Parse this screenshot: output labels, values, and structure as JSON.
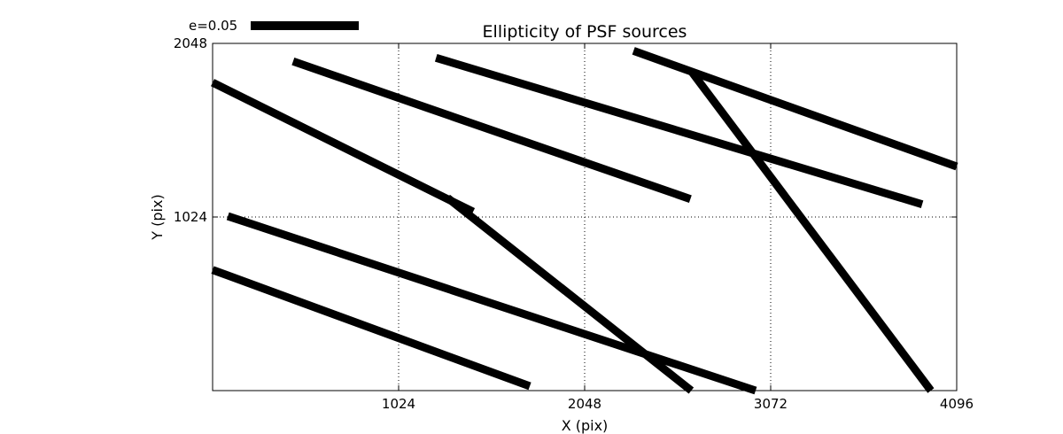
{
  "chart_data": {
    "type": "line",
    "title": "Ellipticity of PSF sources",
    "xlabel": "X (pix)",
    "ylabel": "Y (pix)",
    "xlim": [
      0,
      4096
    ],
    "ylim": [
      0,
      2048
    ],
    "x_ticks": [
      1024,
      2048,
      3072,
      4096
    ],
    "y_ticks": [
      1024,
      2048
    ],
    "grid": true,
    "legend": {
      "label": "e=0.05",
      "position": "top-left"
    },
    "line_color": "#000000",
    "series": [
      {
        "x": [
          0,
          1434
        ],
        "y": [
          1817,
          1055
        ]
      },
      {
        "x": [
          1293,
          2635
        ],
        "y": [
          1137,
          0
        ]
      },
      {
        "x": [
          443,
          2630
        ],
        "y": [
          1942,
          1130
        ]
      },
      {
        "x": [
          1230,
          3906
        ],
        "y": [
          1963,
          1099
        ]
      },
      {
        "x": [
          2317,
          4096
        ],
        "y": [
          2004,
          1322
        ]
      },
      {
        "x": [
          2635,
          3954
        ],
        "y": [
          1884,
          0
        ]
      },
      {
        "x": [
          84,
          2989
        ],
        "y": [
          1029,
          0
        ]
      },
      {
        "x": [
          0,
          1746
        ],
        "y": [
          712,
          26
        ]
      }
    ]
  }
}
